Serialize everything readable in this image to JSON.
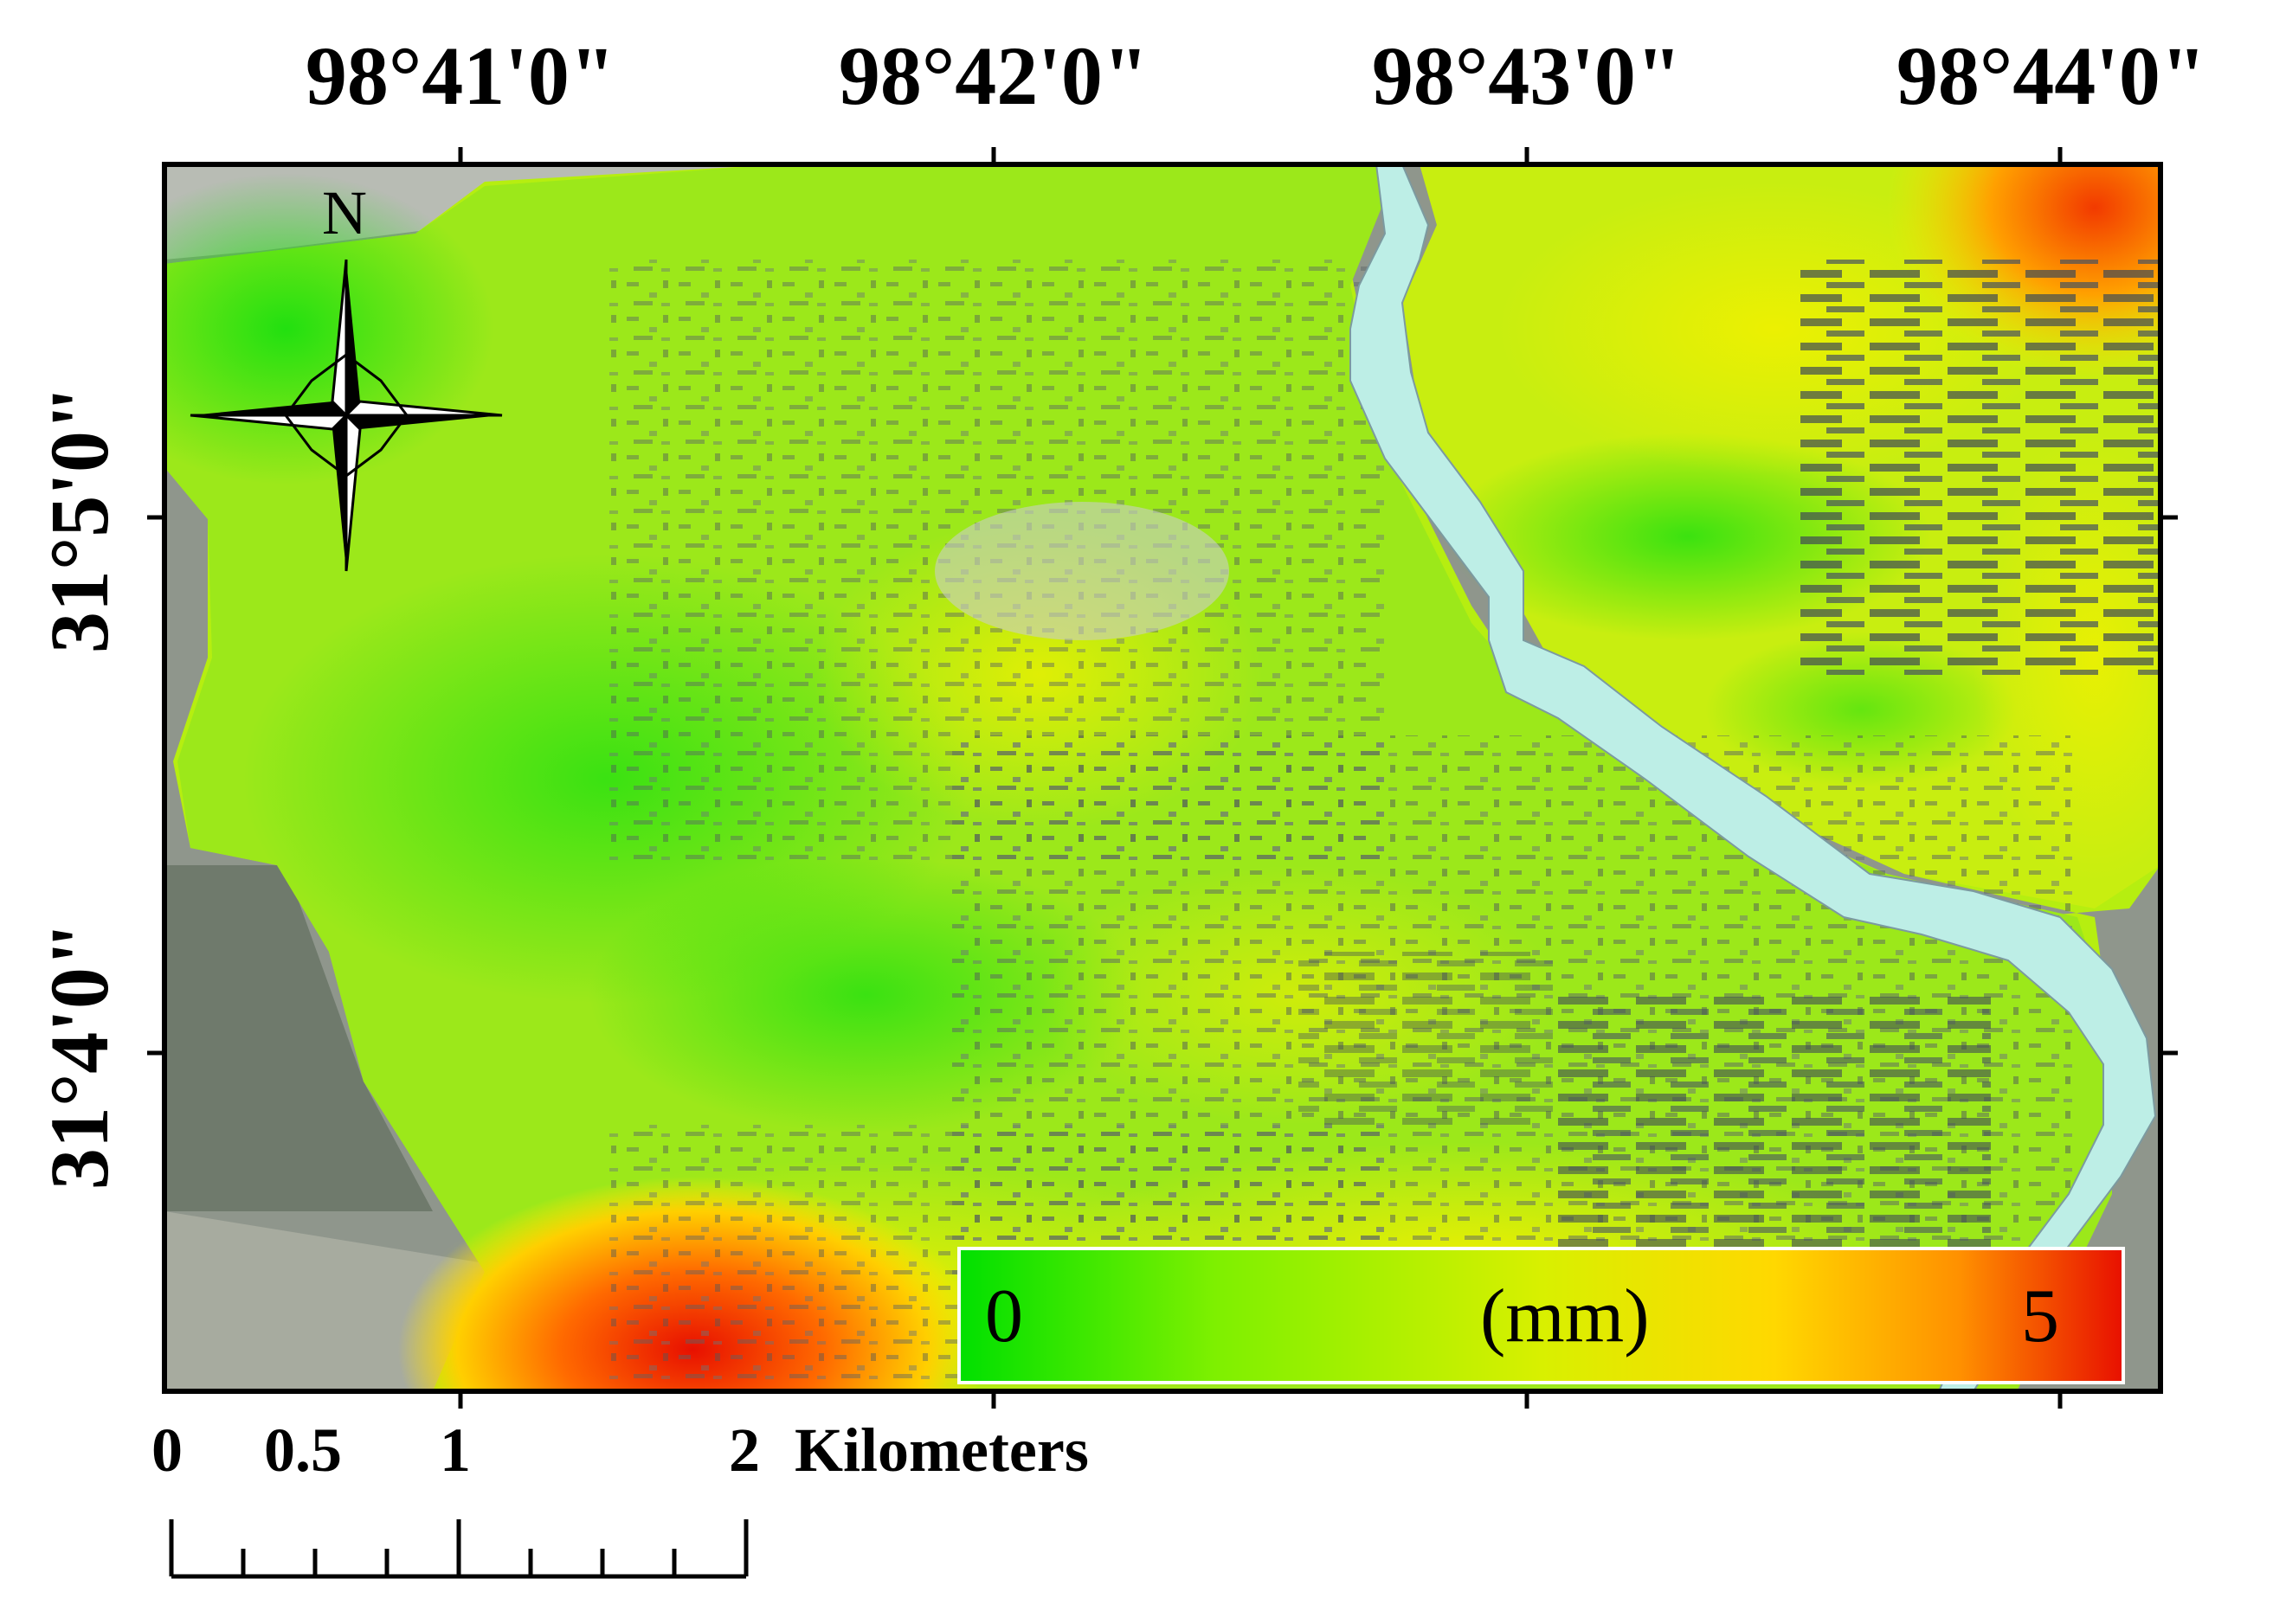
{
  "map": {
    "longitude_labels": [
      "98°41'0\"",
      "98°42'0\"",
      "98°43'0\"",
      "98°44'0\""
    ],
    "latitude_labels": [
      "31°5'0\"",
      "31°4'0\""
    ],
    "north_label": "N",
    "scale_bar": {
      "ticks": [
        "0",
        "0.5",
        "1",
        "2"
      ],
      "unit": "Kilometers"
    },
    "legend": {
      "min_label": "0",
      "unit_label": "(mm)",
      "max_label": "5",
      "colors": [
        "#00e000",
        "#7ef000",
        "#d8f000",
        "#ffd800",
        "#ff9000",
        "#e81000"
      ]
    },
    "colors": {
      "river": "#bdeee6",
      "basemap": "#8a9288",
      "low": "#22e010",
      "mid": "#c8f000",
      "high": "#e81000"
    }
  }
}
